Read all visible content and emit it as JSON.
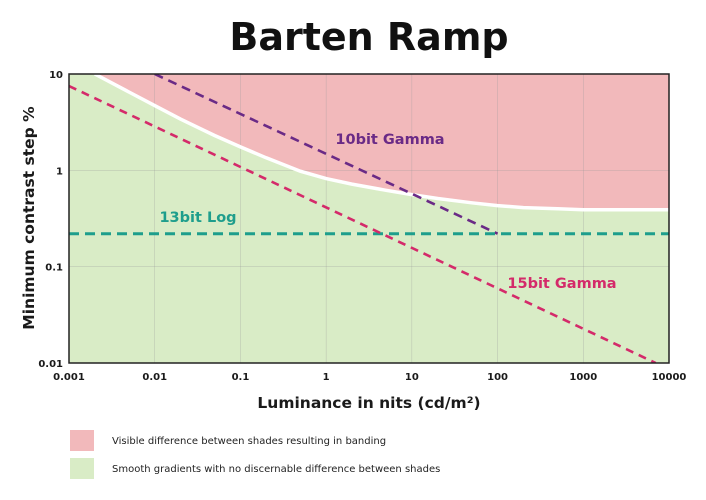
{
  "chart_data": {
    "type": "line",
    "title": "Barten Ramp",
    "xlabel": "Luminance in nits (cd/m²)",
    "ylabel": "Minimum contrast step %",
    "x_scale": "log",
    "y_scale": "log",
    "xlim": [
      0.001,
      10000
    ],
    "ylim": [
      0.01,
      10
    ],
    "x_ticks": [
      0.001,
      0.01,
      0.1,
      1,
      10,
      100,
      1000,
      10000
    ],
    "x_tick_labels": [
      "0.001",
      "0.01",
      "0.1",
      "1",
      "10",
      "100",
      "1000",
      "10000"
    ],
    "y_ticks": [
      0.01,
      0.1,
      1,
      10
    ],
    "y_tick_labels": [
      "0.01",
      "0.1",
      "1",
      "10"
    ],
    "grid": true,
    "regions": {
      "banding": {
        "color": "#f2b9bb",
        "label": "Visible difference between shades resulting in banding"
      },
      "smooth": {
        "color": "#d9ecc6",
        "label": "Smooth gradients with no discernable difference between shades"
      }
    },
    "boundary": {
      "color": "#ffffff",
      "x": [
        0.002,
        0.005,
        0.01,
        0.02,
        0.05,
        0.1,
        0.2,
        0.5,
        1,
        2,
        5,
        10,
        20,
        50,
        100,
        200,
        500,
        1000,
        2000,
        5000,
        10000
      ],
      "y": [
        10,
        6.5,
        4.7,
        3.4,
        2.3,
        1.75,
        1.35,
        0.98,
        0.82,
        0.72,
        0.62,
        0.56,
        0.51,
        0.46,
        0.43,
        0.41,
        0.4,
        0.39,
        0.39,
        0.39,
        0.39
      ]
    },
    "series": [
      {
        "name": "10bit Gamma",
        "color": "#6a2a86",
        "x": [
          0.01,
          100
        ],
        "y": [
          10,
          0.22
        ]
      },
      {
        "name": "13bit Log",
        "color": "#1e9e8c",
        "x": [
          0.001,
          10000
        ],
        "y": [
          0.22,
          0.22
        ]
      },
      {
        "name": "15bit Gamma",
        "color": "#d42a6a",
        "x": [
          0.001,
          7000
        ],
        "y": [
          7.5,
          0.01
        ]
      }
    ],
    "legend": {
      "position": "bottom",
      "entries": [
        {
          "label": "Visible difference between shades resulting in banding",
          "color": "#f2b9bb"
        },
        {
          "label": "Smooth gradients with no discernable difference between shades",
          "color": "#d9ecc6"
        }
      ]
    }
  }
}
